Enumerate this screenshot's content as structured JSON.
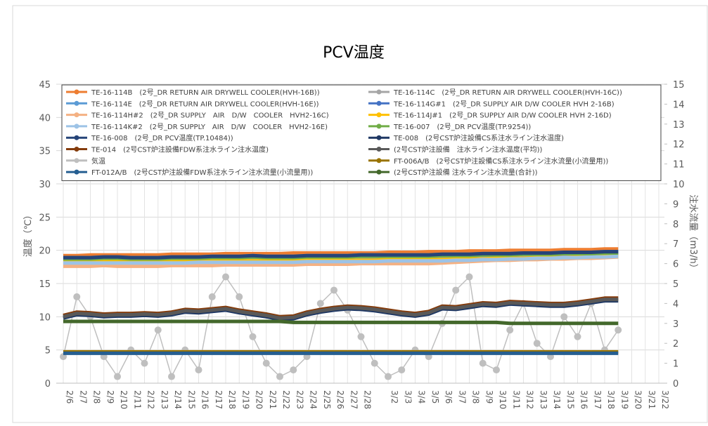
{
  "chart_data": {
    "type": "line",
    "title": "PCV温度",
    "ylabel": "温度（℃）",
    "y2label": "注水流量（m3/h）",
    "ylim": [
      0,
      45
    ],
    "yticks": [
      0,
      5,
      10,
      15,
      20,
      25,
      30,
      35,
      40,
      45
    ],
    "y2lim": [
      0,
      15
    ],
    "y2ticks": [
      0,
      1,
      2,
      3,
      4,
      5,
      6,
      7,
      8,
      9,
      10,
      11,
      12,
      13,
      14,
      15
    ],
    "grid": true,
    "xgrid": true,
    "legend": "top",
    "categories": [
      "2/6",
      "2/7",
      "2/8",
      "2/9",
      "2/10",
      "2/11",
      "2/12",
      "2/13",
      "2/14",
      "2/15",
      "2/16",
      "2/17",
      "2/18",
      "2/19",
      "2/20",
      "2/21",
      "2/22",
      "2/23",
      "2/24",
      "2/25",
      "2/26",
      "2/27",
      "2/28",
      null,
      "3/2",
      "3/3",
      "3/4",
      "3/5",
      "3/6",
      "3/7",
      "3/8",
      "3/9",
      "3/10",
      "3/11",
      "3/12",
      "3/13",
      "3/14",
      "3/15",
      "3/16",
      "3/17",
      "3/18",
      "3/19",
      "3/20",
      "3/21",
      "3/22"
    ],
    "series": [
      {
        "name": "TE-16-114B　(2号_DR RETURN AIR DRYWELL COOLER(HVH-16B))",
        "color": "#ed7d31",
        "values": [
          19.2,
          19.2,
          19.3,
          19.3,
          19.3,
          19.3,
          19.3,
          19.3,
          19.4,
          19.4,
          19.4,
          19.4,
          19.5,
          19.5,
          19.5,
          19.5,
          19.5,
          19.6,
          19.6,
          19.6,
          19.6,
          19.6,
          19.6,
          19.6,
          19.7,
          19.7,
          19.7,
          19.8,
          19.8,
          19.8,
          19.9,
          19.9,
          19.9,
          20.0,
          20.0,
          20.0,
          20.0,
          20.1,
          20.1,
          20.1,
          20.2,
          20.2,
          null,
          null,
          null
        ]
      },
      {
        "name": "TE-16-114C　(2号_DR RETURN AIR DRYWELL COOLER(HVH-16C))",
        "color": "#a5a5a5",
        "values": [
          18.5,
          18.5,
          18.5,
          18.6,
          18.6,
          18.5,
          18.5,
          18.5,
          18.6,
          18.6,
          18.6,
          18.6,
          18.7,
          18.7,
          18.7,
          18.7,
          18.7,
          18.7,
          18.8,
          18.8,
          18.8,
          18.8,
          18.8,
          18.9,
          18.9,
          18.9,
          18.9,
          18.9,
          19.0,
          19.0,
          19.0,
          19.0,
          19.1,
          19.1,
          19.1,
          19.1,
          19.2,
          19.2,
          19.2,
          19.3,
          19.3,
          19.3,
          null,
          null,
          null
        ]
      },
      {
        "name": "TE-16-114E　(2号_DR RETURN AIR DRYWELL COOLER(HVH-16E))",
        "color": "#5b9bd5",
        "values": [
          18.9,
          18.9,
          18.9,
          19.0,
          19.0,
          18.9,
          18.9,
          18.9,
          19.0,
          19.0,
          19.0,
          19.1,
          19.1,
          19.1,
          19.2,
          19.1,
          19.1,
          19.1,
          19.2,
          19.2,
          19.2,
          19.2,
          19.3,
          19.3,
          19.3,
          19.3,
          19.3,
          19.3,
          19.4,
          19.4,
          19.4,
          19.5,
          19.5,
          19.5,
          19.6,
          19.6,
          19.6,
          19.7,
          19.7,
          19.7,
          19.8,
          19.8,
          null,
          null,
          null
        ]
      },
      {
        "name": "TE-16-114G#1　(2号_DR SUPPLY AIR D/W COOLER HVH 2-16B)",
        "color": "#4472c4",
        "values": [
          18.7,
          18.7,
          18.7,
          18.8,
          18.8,
          18.7,
          18.7,
          18.7,
          18.8,
          18.8,
          18.8,
          18.9,
          18.9,
          18.9,
          19.0,
          18.9,
          18.9,
          18.9,
          19.0,
          19.0,
          19.0,
          19.0,
          19.1,
          19.1,
          19.1,
          19.1,
          19.1,
          19.1,
          19.2,
          19.2,
          19.2,
          19.3,
          19.3,
          19.3,
          19.4,
          19.4,
          19.4,
          19.5,
          19.5,
          19.5,
          19.6,
          19.6,
          null,
          null,
          null
        ]
      },
      {
        "name": "TE-16-114H#2　(2号_DR SUPPLY　AIR　D/W　COOLER　HVH2-16C)",
        "color": "#f4b183",
        "values": [
          17.6,
          17.6,
          17.6,
          17.7,
          17.6,
          17.6,
          17.6,
          17.6,
          17.7,
          17.7,
          17.7,
          17.7,
          17.8,
          17.8,
          17.8,
          17.8,
          17.8,
          17.8,
          17.9,
          17.9,
          17.9,
          17.9,
          18.0,
          18.0,
          18.0,
          18.0,
          18.0,
          18.0,
          18.1,
          18.2,
          18.3,
          18.4,
          18.5,
          18.5,
          18.6,
          18.6,
          18.7,
          18.7,
          18.8,
          18.8,
          18.9,
          19.0,
          null,
          null,
          null
        ]
      },
      {
        "name": "TE-16-114J#1　(2号_DR SUPPLY AIR D/W COOLER HVH 2-16D)",
        "color": "#ffc000",
        "values": [
          18.3,
          18.3,
          18.3,
          18.3,
          18.3,
          18.3,
          18.3,
          18.3,
          18.3,
          18.3,
          18.4,
          18.4,
          18.4,
          18.4,
          18.4,
          18.4,
          18.4,
          18.4,
          18.5,
          18.5,
          18.5,
          18.5,
          18.5,
          18.5,
          18.6,
          18.6,
          18.6,
          18.6,
          18.6,
          18.7,
          18.7,
          18.7,
          18.8,
          18.8,
          18.8,
          18.9,
          18.9,
          18.9,
          19.0,
          19.0,
          19.1,
          19.1,
          null,
          null,
          null
        ]
      },
      {
        "name": "TE-16-114K#2　(2号_DR SUPPLY　AIR　D/W　COOLER　HVH2-16E)",
        "color": "#9dc3e6",
        "values": [
          18.1,
          18.1,
          18.1,
          18.1,
          18.1,
          18.1,
          18.1,
          18.1,
          18.1,
          18.1,
          18.2,
          18.2,
          18.2,
          18.2,
          18.2,
          18.2,
          18.2,
          18.2,
          18.3,
          18.3,
          18.3,
          18.3,
          18.3,
          18.3,
          18.4,
          18.4,
          18.4,
          18.4,
          18.4,
          18.5,
          18.5,
          18.6,
          18.6,
          18.7,
          18.7,
          18.8,
          18.8,
          18.9,
          18.9,
          19.0,
          19.0,
          19.1,
          null,
          null,
          null
        ]
      },
      {
        "name": "TE-16-007　(2号_DR PCV温度(TP.9254))",
        "color": "#70ad47",
        "values": [
          18.7,
          18.7,
          18.7,
          18.8,
          18.8,
          18.7,
          18.7,
          18.7,
          18.8,
          18.8,
          18.8,
          18.9,
          18.9,
          18.9,
          19.0,
          18.9,
          18.9,
          18.9,
          19.0,
          19.0,
          19.0,
          19.0,
          19.1,
          19.1,
          19.1,
          19.1,
          19.1,
          19.1,
          19.2,
          19.2,
          19.2,
          19.3,
          19.3,
          19.3,
          19.4,
          19.4,
          19.4,
          19.5,
          19.5,
          19.5,
          19.6,
          19.6,
          null,
          null,
          null
        ]
      },
      {
        "name": "TE-16-008　(2号_DR PCV温度(TP.10484))",
        "color": "#264478",
        "values": [
          18.9,
          18.9,
          18.9,
          19.0,
          19.0,
          18.9,
          18.9,
          18.9,
          19.0,
          19.0,
          19.0,
          19.1,
          19.1,
          19.1,
          19.2,
          19.1,
          19.1,
          19.1,
          19.2,
          19.2,
          19.2,
          19.2,
          19.3,
          19.3,
          19.3,
          19.3,
          19.3,
          19.3,
          19.4,
          19.4,
          19.4,
          19.5,
          19.5,
          19.5,
          19.6,
          19.6,
          19.6,
          19.7,
          19.7,
          19.7,
          19.8,
          19.8,
          null,
          null,
          null
        ]
      },
      {
        "name": "TE-008　(2号CST炉注設備CS系注水ライン注水温度)",
        "color": "#1f3864",
        "values": [
          9.8,
          10.3,
          10.2,
          10.0,
          10.1,
          10.1,
          10.2,
          10.1,
          10.3,
          10.7,
          10.6,
          10.8,
          11.0,
          10.6,
          10.3,
          10.0,
          9.6,
          9.7,
          10.3,
          10.7,
          11.0,
          11.2,
          11.1,
          10.9,
          10.6,
          10.3,
          10.1,
          10.4,
          11.2,
          11.1,
          11.4,
          11.7,
          11.6,
          11.9,
          11.8,
          11.7,
          11.6,
          11.6,
          11.8,
          12.1,
          12.4,
          12.4,
          null,
          null,
          null
        ]
      },
      {
        "name": "TE-014　(2号CST炉注設備FDW系注水ライン注水温度)",
        "color": "#843c0c",
        "values": [
          10.2,
          10.7,
          10.6,
          10.4,
          10.5,
          10.5,
          10.6,
          10.5,
          10.7,
          11.1,
          11.0,
          11.2,
          11.4,
          11.0,
          10.7,
          10.4,
          10.0,
          10.1,
          10.7,
          11.1,
          11.4,
          11.6,
          11.5,
          11.3,
          11.0,
          10.7,
          10.5,
          10.8,
          11.6,
          11.5,
          11.8,
          12.1,
          12.0,
          12.3,
          12.2,
          12.1,
          12.0,
          12.0,
          12.2,
          12.5,
          12.8,
          12.8,
          null,
          null,
          null
        ]
      },
      {
        "name": "(2号CST炉注設備　注水ライン注水温度(平均))",
        "color": "#595959",
        "values": [
          10.0,
          10.5,
          10.4,
          10.2,
          10.3,
          10.3,
          10.4,
          10.3,
          10.5,
          10.9,
          10.8,
          11.0,
          11.2,
          10.8,
          10.5,
          10.2,
          9.8,
          9.9,
          10.5,
          10.9,
          11.2,
          11.4,
          11.3,
          11.1,
          10.8,
          10.5,
          10.3,
          10.6,
          11.4,
          11.3,
          11.6,
          11.9,
          11.8,
          12.1,
          12.0,
          11.9,
          11.8,
          11.8,
          12.0,
          12.3,
          12.6,
          12.6,
          null,
          null,
          null
        ]
      },
      {
        "name": "気温",
        "color": "#bfbfbf",
        "markers": true,
        "values": [
          4,
          13,
          10,
          4,
          1,
          5,
          3,
          8,
          1,
          5,
          2,
          13,
          16,
          13,
          7,
          3,
          1,
          2,
          4,
          12,
          14,
          11,
          7,
          3,
          1,
          2,
          5,
          4,
          9,
          14,
          16,
          3,
          2,
          8,
          12,
          6,
          4,
          10,
          7,
          12,
          5,
          8,
          null,
          null,
          null
        ]
      },
      {
        "name": "FT-006A/B　(2号CST炉注設備CS系注水ライン注水流量(小流量用))",
        "color": "#997300",
        "axis": "y2",
        "values": [
          1.57,
          1.57,
          1.57,
          1.57,
          1.57,
          1.57,
          1.57,
          1.57,
          1.57,
          1.57,
          1.57,
          1.57,
          1.57,
          1.57,
          1.57,
          1.57,
          1.57,
          1.57,
          1.57,
          1.57,
          1.57,
          1.57,
          1.57,
          1.57,
          1.57,
          1.57,
          1.57,
          1.57,
          1.57,
          1.57,
          1.57,
          1.57,
          1.57,
          1.57,
          1.57,
          1.57,
          1.57,
          1.57,
          1.57,
          1.57,
          1.57,
          1.57,
          null,
          null,
          null
        ]
      },
      {
        "name": "FT-012A/B　(2号CST炉注設備FDW系注水ライン注水流量(小流量用))",
        "color": "#255e91",
        "axis": "y2",
        "values": [
          1.5,
          1.5,
          1.5,
          1.5,
          1.5,
          1.5,
          1.5,
          1.5,
          1.5,
          1.5,
          1.5,
          1.5,
          1.5,
          1.5,
          1.5,
          1.5,
          1.5,
          1.5,
          1.5,
          1.5,
          1.5,
          1.5,
          1.5,
          1.5,
          1.5,
          1.5,
          1.5,
          1.5,
          1.5,
          1.5,
          1.5,
          1.5,
          1.5,
          1.5,
          1.5,
          1.5,
          1.5,
          1.5,
          1.5,
          1.5,
          1.5,
          1.5,
          null,
          null,
          null
        ]
      },
      {
        "name": "(2号CST炉注設備 注水ライン注水流量(合計))",
        "color": "#43682b",
        "axis": "y2",
        "values": [
          3.1,
          3.1,
          3.1,
          3.1,
          3.1,
          3.1,
          3.1,
          3.1,
          3.1,
          3.1,
          3.1,
          3.1,
          3.1,
          3.1,
          3.1,
          3.1,
          3.1,
          3.05,
          3.05,
          3.05,
          3.05,
          3.05,
          3.05,
          3.05,
          3.05,
          3.05,
          3.05,
          3.05,
          3.05,
          3.05,
          3.05,
          3.05,
          3.05,
          3.0,
          3.0,
          3.0,
          3.0,
          3.0,
          3.0,
          3.0,
          3.0,
          3.0,
          null,
          null,
          null
        ]
      }
    ]
  }
}
